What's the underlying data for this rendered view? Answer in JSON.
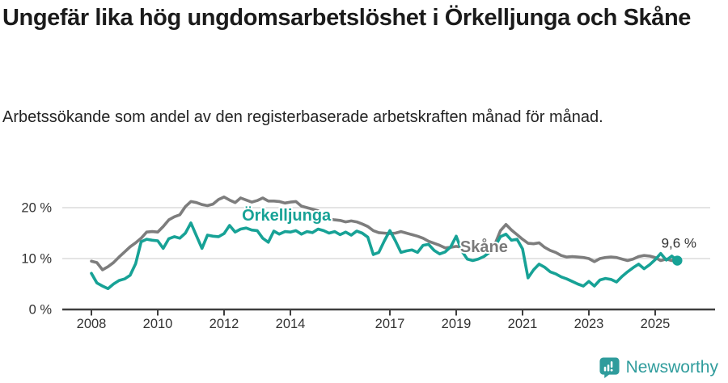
{
  "header": {
    "title": "Ungefär lika hög ungdomsarbetslöshet i Örkelljunga och Skåne",
    "subtitle": "Arbetssökande som andel av den registerbaserade arbetskraften månad för månad."
  },
  "chart_data": {
    "type": "line",
    "title": "Ungefär lika hög ungdomsarbetslöshet i Örkelljunga och Skåne",
    "xlabel": "",
    "ylabel": "",
    "grid": "horizontal-only",
    "x_start_year": 2008,
    "x_step_months": 2,
    "xlim": [
      2007.1,
      2026.4
    ],
    "ylim": [
      0,
      24
    ],
    "x_ticks": [
      2008,
      2010,
      2012,
      2014,
      2017,
      2019,
      2021,
      2023,
      2025
    ],
    "y_ticks": [
      {
        "value": 0,
        "label": "0 %"
      },
      {
        "value": 10,
        "label": "10 %"
      },
      {
        "value": 20,
        "label": "20 %"
      }
    ],
    "legend_position": "inline-labels-on-lines",
    "series": [
      {
        "name": "Skåne",
        "color": "#7d7d7d",
        "label_color": "#7a7a7a",
        "label_anchor": {
          "year": 2019.12,
          "value": 12.4
        },
        "end_dot": false,
        "values": [
          9.5,
          9.2,
          7.8,
          8.4,
          9.2,
          10.3,
          11.3,
          12.3,
          13.1,
          14.0,
          15.2,
          15.3,
          15.2,
          16.3,
          17.6,
          18.2,
          18.6,
          20.2,
          21.2,
          21.0,
          20.6,
          20.4,
          20.7,
          21.6,
          22.1,
          21.5,
          21.0,
          21.9,
          21.5,
          21.1,
          21.4,
          21.9,
          21.3,
          21.3,
          21.2,
          20.9,
          21.1,
          21.2,
          20.3,
          20.0,
          19.7,
          19.4,
          18.3,
          17.8,
          17.6,
          17.5,
          17.2,
          17.4,
          17.2,
          16.8,
          16.3,
          15.5,
          15.1,
          15.0,
          14.9,
          15.0,
          15.3,
          15.0,
          14.7,
          14.4,
          14.0,
          13.4,
          13.0,
          12.6,
          12.1,
          12.2,
          12.4,
          12.2,
          11.9,
          11.8,
          11.6,
          11.5,
          11.7,
          12.8,
          15.5,
          16.7,
          15.6,
          14.7,
          13.8,
          13.0,
          12.9,
          13.1,
          12.2,
          11.6,
          11.2,
          10.6,
          10.3,
          10.4,
          10.3,
          10.2,
          10.0,
          9.4,
          10.0,
          10.2,
          10.3,
          10.2,
          9.9,
          9.6,
          9.9,
          10.4,
          10.6,
          10.5,
          10.2,
          9.6,
          9.9,
          9.6,
          10.2
        ]
      },
      {
        "name": "Örkelljunga",
        "color": "#17a296",
        "label_color": "#17a296",
        "label_anchor": {
          "year": 2012.54,
          "value": 18.6
        },
        "end_dot": true,
        "end_label": "9,6 %",
        "values": [
          7.1,
          5.2,
          4.6,
          4.1,
          5.0,
          5.7,
          6.0,
          6.7,
          9.0,
          13.3,
          13.8,
          13.6,
          13.5,
          12.0,
          13.9,
          14.3,
          14.0,
          15.0,
          17.0,
          14.5,
          12.0,
          14.6,
          14.4,
          14.3,
          14.9,
          16.5,
          15.2,
          15.8,
          16.0,
          15.6,
          15.5,
          14.0,
          13.2,
          15.4,
          14.8,
          15.3,
          15.2,
          15.5,
          14.8,
          15.3,
          15.1,
          15.8,
          15.5,
          15.0,
          15.3,
          14.7,
          15.2,
          14.6,
          15.4,
          15.0,
          14.2,
          10.8,
          11.2,
          13.5,
          15.5,
          13.5,
          11.2,
          11.5,
          11.7,
          11.2,
          12.6,
          12.8,
          11.6,
          10.9,
          11.3,
          12.3,
          14.4,
          11.5,
          9.9,
          9.6,
          9.9,
          10.4,
          11.2,
          12.3,
          14.3,
          14.8,
          13.6,
          13.8,
          11.9,
          6.2,
          7.8,
          8.9,
          8.3,
          7.4,
          7.0,
          6.4,
          6.0,
          5.5,
          5.0,
          4.6,
          5.5,
          4.6,
          5.8,
          6.1,
          5.9,
          5.4,
          6.5,
          7.4,
          8.2,
          8.9,
          8.0,
          8.8,
          9.8,
          11.0,
          9.7,
          10.5,
          9.6
        ]
      }
    ]
  },
  "footer": {
    "brand": "Newsworthy",
    "brand_color": "#2f9c9c"
  }
}
